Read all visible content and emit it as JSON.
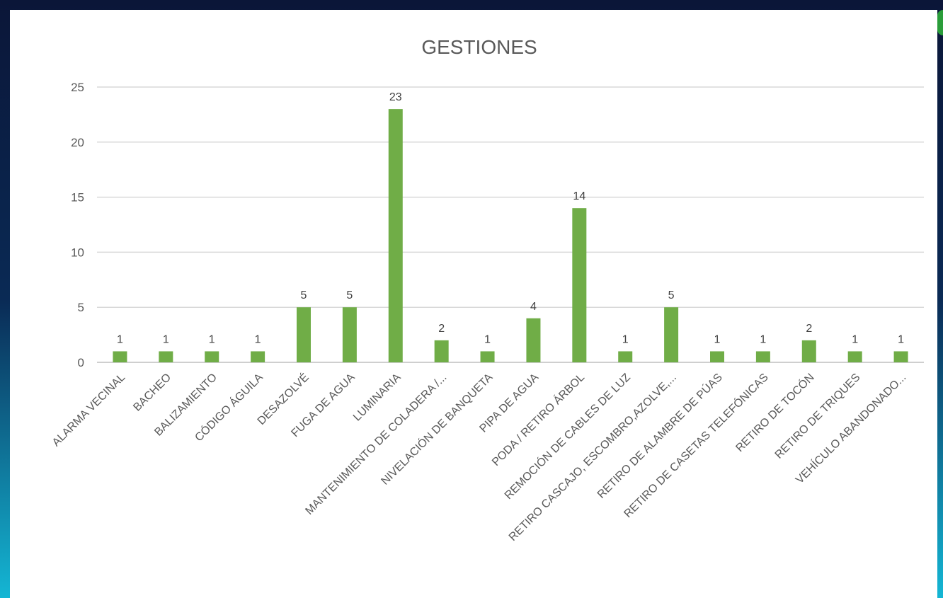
{
  "chart_data": {
    "type": "bar",
    "title": "GESTIONES",
    "xlabel": "",
    "ylabel": "",
    "ylim": [
      0,
      25
    ],
    "yticks": [
      0,
      5,
      10,
      15,
      20,
      25
    ],
    "grid": true,
    "legend": "none",
    "bar_color": "#70ad47",
    "categories": [
      "ALARMA VECINAL",
      "BACHEO",
      "BALIZAMIENTO",
      "CÓDIGO ÁGUILA",
      "DESAZOLVÉ",
      "FUGA DE AGUA",
      "LUMINARIA",
      "MANTENIMIENTO DE COLADERA /...",
      "NIVELACIÓN DE BANQUETA",
      "PIPA DE AGUA",
      "PODA / RETIRO ÁRBOL",
      "REMOCIÓN DE CABLES DE LUZ",
      "RETIRO CASCAJO, ESCOMBRO,AZOLVE,...",
      "RETIRO DE ALAMBRE DE PÚAS",
      "RETIRO DE CASETAS TELEFÓNICAS",
      "RETIRO DE TOCÓN",
      "RETIRO DE TRIQUES",
      "VEHÍCULO ABANDONADO..."
    ],
    "values": [
      1,
      1,
      1,
      1,
      5,
      5,
      23,
      2,
      1,
      4,
      14,
      1,
      5,
      1,
      1,
      2,
      1,
      1
    ]
  }
}
